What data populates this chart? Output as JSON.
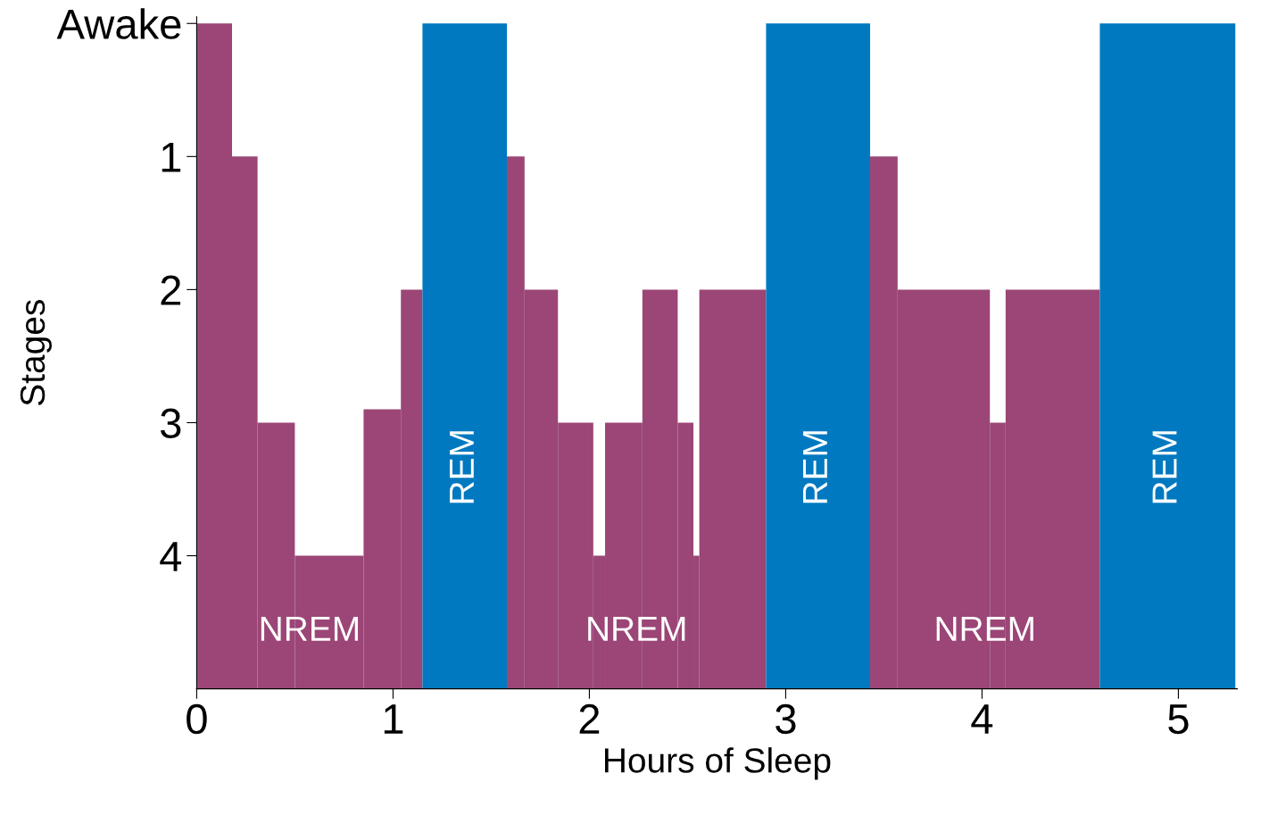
{
  "chart_data": {
    "type": "histogram",
    "xlabel": "Hours of Sleep",
    "ylabel": "Stages",
    "bins": [
      0,
      0.18,
      0.31,
      0.5,
      0.85,
      1.04,
      1.15,
      1.58,
      1.67,
      1.84,
      2.02,
      2.08,
      2.27,
      2.45,
      2.53,
      2.56,
      2.9,
      3.43,
      3.57,
      4.04,
      4.12,
      4.6,
      5.29
    ],
    "base": [
      5,
      5,
      5,
      5,
      5,
      5,
      5,
      5,
      5,
      5,
      5,
      5,
      5,
      5,
      5,
      5,
      5,
      5,
      5,
      5,
      5,
      5
    ],
    "values": [
      -5,
      -4,
      -2,
      -1,
      -2.1,
      -3,
      -5,
      -4,
      -3,
      -2,
      -1,
      -2,
      -3,
      -2,
      -1,
      -3,
      -5,
      -4,
      -3,
      -2,
      -3,
      -5
    ],
    "colors": [
      "#9b4677",
      "#9b4677",
      "#9b4677",
      "#9b4677",
      "#9b4677",
      "#9b4677",
      "#0179c0",
      "#9b4677",
      "#9b4677",
      "#9b4677",
      "#9b4677",
      "#9b4677",
      "#9b4677",
      "#9b4677",
      "#9b4677",
      "#9b4677",
      "#0179c0",
      "#9b4677",
      "#9b4677",
      "#9b4677",
      "#9b4677",
      "#0179c0"
    ],
    "xlim": [
      0,
      5.3
    ],
    "ylim": [
      5,
      -0.05
    ],
    "xticks": [
      0,
      1,
      2,
      3,
      4,
      5
    ],
    "yticks": [
      {
        "value": 0,
        "label": "Awake"
      },
      1,
      2,
      3,
      4
    ],
    "grid": false,
    "annotations": [
      "NREM",
      "REM",
      "NREM",
      "REM",
      "NREM",
      "REM"
    ]
  }
}
